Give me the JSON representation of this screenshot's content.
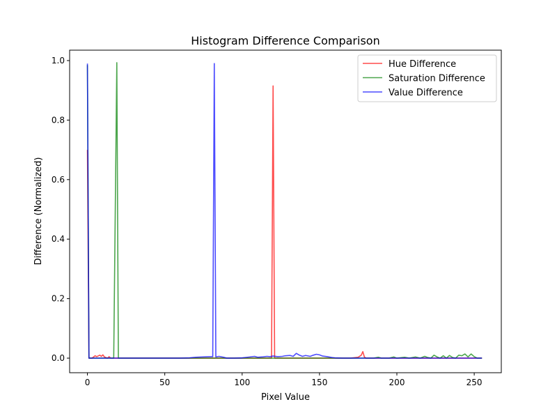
{
  "chart_data": {
    "type": "line",
    "title": "Histogram Difference Comparison",
    "xlabel": "Pixel Value",
    "ylabel": "Difference (Normalized)",
    "xlim": [
      -11.5,
      267.5
    ],
    "ylim": [
      -0.049,
      1.035
    ],
    "xticks": [
      0,
      50,
      100,
      150,
      200,
      250
    ],
    "xtick_labels": [
      "0",
      "50",
      "100",
      "150",
      "200",
      "250"
    ],
    "yticks": [
      0.0,
      0.2,
      0.4,
      0.6,
      0.8,
      1.0
    ],
    "ytick_labels": [
      "0.0",
      "0.2",
      "0.4",
      "0.6",
      "0.8",
      "1.0"
    ],
    "grid": false,
    "legend_position": "top-right",
    "series": [
      {
        "name": "Hue Difference",
        "color": "#ff0000",
        "opacity": 0.7,
        "points": [
          [
            0,
            0.7
          ],
          [
            1,
            0.0
          ],
          [
            3,
            0.0
          ],
          [
            5,
            0.008
          ],
          [
            6,
            0.005
          ],
          [
            8,
            0.01
          ],
          [
            9,
            0.006
          ],
          [
            10,
            0.011
          ],
          [
            11,
            0.004
          ],
          [
            13,
            0.0
          ],
          [
            14,
            0.005
          ],
          [
            15,
            0.0
          ],
          [
            20,
            0.0
          ],
          [
            60,
            0.0
          ],
          [
            100,
            0.0
          ],
          [
            117,
            0.0
          ],
          [
            119,
            0.0
          ],
          [
            120,
            0.915
          ],
          [
            121,
            0.0
          ],
          [
            123,
            0.0
          ],
          [
            130,
            0.0
          ],
          [
            150,
            0.0
          ],
          [
            170,
            0.0
          ],
          [
            175,
            0.003
          ],
          [
            177,
            0.01
          ],
          [
            178,
            0.022
          ],
          [
            179,
            0.004
          ],
          [
            180,
            0.0
          ],
          [
            200,
            0.0
          ],
          [
            255,
            0.0
          ]
        ]
      },
      {
        "name": "Saturation Difference",
        "color": "#008000",
        "opacity": 0.7,
        "points": [
          [
            0,
            0.985
          ],
          [
            1,
            0.0
          ],
          [
            17,
            0.0
          ],
          [
            19,
            0.993
          ],
          [
            20,
            0.0
          ],
          [
            60,
            0.0
          ],
          [
            100,
            0.0
          ],
          [
            150,
            0.0
          ],
          [
            185,
            0.0
          ],
          [
            188,
            0.003
          ],
          [
            190,
            0.0
          ],
          [
            195,
            0.0
          ],
          [
            198,
            0.004
          ],
          [
            200,
            0.0
          ],
          [
            205,
            0.003
          ],
          [
            208,
            0.0
          ],
          [
            212,
            0.004
          ],
          [
            215,
            0.0
          ],
          [
            218,
            0.006
          ],
          [
            220,
            0.002
          ],
          [
            222,
            0.0
          ],
          [
            224,
            0.01
          ],
          [
            226,
            0.004
          ],
          [
            228,
            0.0
          ],
          [
            230,
            0.008
          ],
          [
            232,
            0.0
          ],
          [
            234,
            0.009
          ],
          [
            236,
            0.002
          ],
          [
            238,
            0.0
          ],
          [
            240,
            0.01
          ],
          [
            242,
            0.008
          ],
          [
            244,
            0.014
          ],
          [
            246,
            0.004
          ],
          [
            248,
            0.014
          ],
          [
            250,
            0.005
          ],
          [
            252,
            0.0
          ],
          [
            255,
            0.0
          ]
        ]
      },
      {
        "name": "Value Difference",
        "color": "#0000ff",
        "opacity": 0.7,
        "points": [
          [
            0,
            0.99
          ],
          [
            1,
            0.0
          ],
          [
            10,
            0.0
          ],
          [
            30,
            0.0
          ],
          [
            60,
            0.0
          ],
          [
            66,
            0.001
          ],
          [
            70,
            0.003
          ],
          [
            75,
            0.004
          ],
          [
            80,
            0.005
          ],
          [
            81,
            0.005
          ],
          [
            82,
            0.99
          ],
          [
            83,
            0.004
          ],
          [
            85,
            0.006
          ],
          [
            88,
            0.003
          ],
          [
            90,
            0.0
          ],
          [
            95,
            0.0
          ],
          [
            100,
            0.001
          ],
          [
            105,
            0.004
          ],
          [
            108,
            0.006
          ],
          [
            110,
            0.003
          ],
          [
            113,
            0.004
          ],
          [
            116,
            0.006
          ],
          [
            118,
            0.005
          ],
          [
            120,
            0.007
          ],
          [
            123,
            0.005
          ],
          [
            126,
            0.006
          ],
          [
            128,
            0.008
          ],
          [
            131,
            0.009
          ],
          [
            133,
            0.006
          ],
          [
            135,
            0.016
          ],
          [
            137,
            0.01
          ],
          [
            139,
            0.006
          ],
          [
            141,
            0.009
          ],
          [
            144,
            0.006
          ],
          [
            146,
            0.01
          ],
          [
            148,
            0.013
          ],
          [
            150,
            0.011
          ],
          [
            152,
            0.007
          ],
          [
            155,
            0.005
          ],
          [
            158,
            0.002
          ],
          [
            160,
            0.001
          ],
          [
            165,
            0.0
          ],
          [
            180,
            0.0
          ],
          [
            200,
            0.0
          ],
          [
            230,
            0.0
          ],
          [
            255,
            0.0
          ]
        ]
      }
    ]
  }
}
